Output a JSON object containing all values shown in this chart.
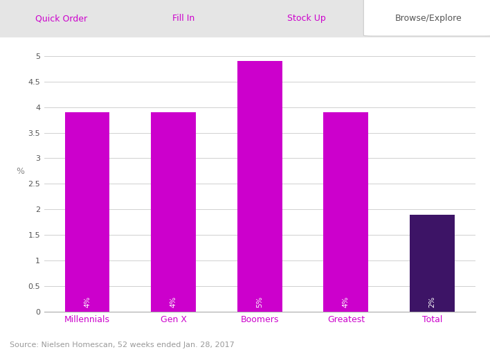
{
  "categories": [
    "Millennials",
    "Gen X",
    "Boomers",
    "Greatest",
    "Total"
  ],
  "values": [
    3.9,
    3.9,
    4.9,
    3.9,
    1.9
  ],
  "labels": [
    "4%",
    "4%",
    "5%",
    "4%",
    "2%"
  ],
  "bar_colors": [
    "#CC00CC",
    "#CC00CC",
    "#CC00CC",
    "#CC00CC",
    "#3D1466"
  ],
  "ylabel": "%",
  "ylim": [
    0,
    5.3
  ],
  "yticks": [
    0,
    0.5,
    1,
    1.5,
    2,
    2.5,
    3,
    3.5,
    4,
    4.5,
    5
  ],
  "source_text": "Source: Nielsen Homescan, 52 weeks ended Jan. 28, 2017",
  "tab_labels": [
    "Quick Order",
    "Fill In",
    "Stock Up",
    "Browse/Explore"
  ],
  "tab_active": "Browse/Explore",
  "background_color": "#ffffff",
  "tab_bar_bg": "#e5e5e5",
  "tab_active_bg": "#ffffff",
  "grid_color": "#d0d0d0",
  "x_label_color": "#CC00CC",
  "bar_label_color": "#ffffff",
  "tab_text_color_inactive": "#CC00CC",
  "tab_text_color_active": "#555555",
  "source_color": "#999999",
  "ytick_color": "#555555"
}
